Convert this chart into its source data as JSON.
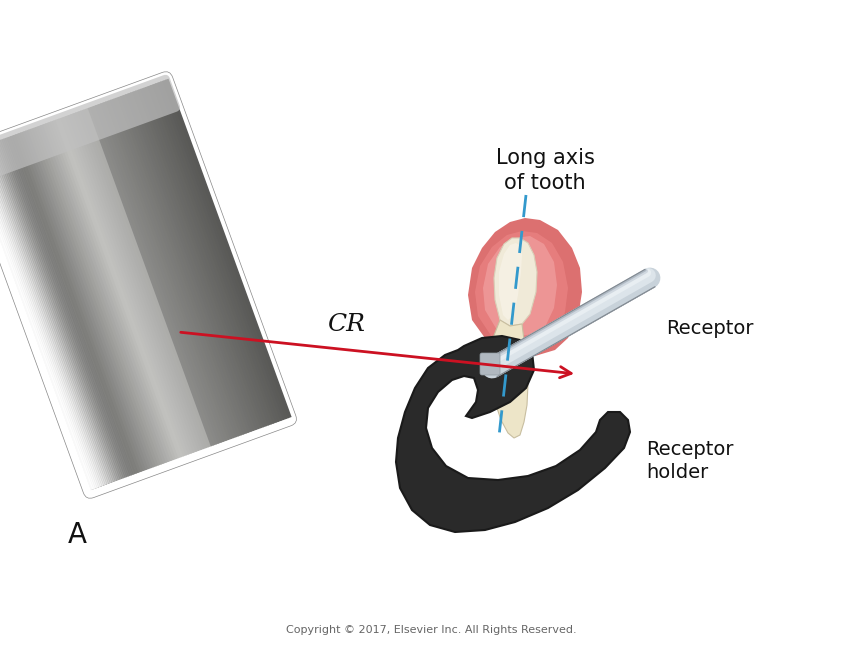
{
  "background_color": "#ffffff",
  "fig_width": 8.62,
  "fig_height": 6.53,
  "label_A": "A",
  "label_CR": "CR",
  "label_long_axis": "Long axis\nof tooth",
  "label_receptor": "Receptor",
  "label_receptor_holder": "Receptor\nholder",
  "label_copyright": "Copyright © 2017, Elsevier Inc. All Rights Reserved.",
  "cr_line_color": "#cc1122",
  "long_axis_color": "#3399cc"
}
